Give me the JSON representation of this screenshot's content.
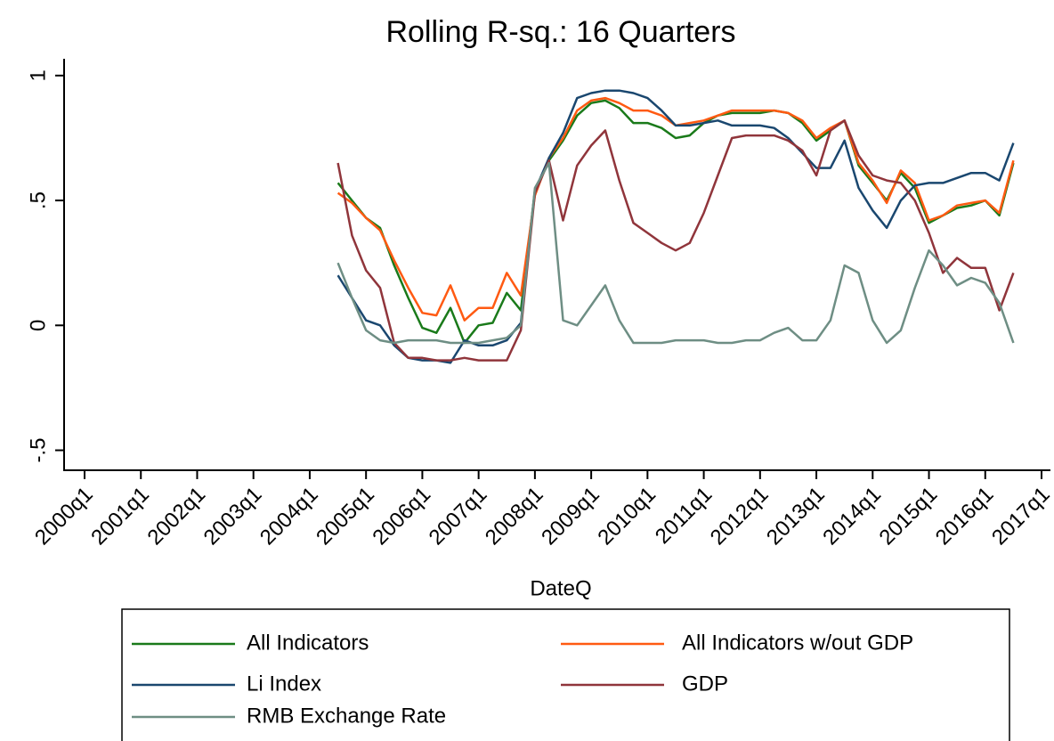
{
  "chart_data": {
    "type": "line",
    "title": "Rolling R-sq.: 16 Quarters",
    "x_label": "DateQ",
    "categories": [
      "2000q1",
      null,
      null,
      null,
      "2001q1",
      null,
      null,
      null,
      "2002q1",
      null,
      null,
      null,
      "2003q1",
      null,
      null,
      null,
      "2004q1",
      null,
      null,
      null,
      "2005q1",
      null,
      null,
      null,
      "2006q1",
      null,
      null,
      null,
      "2007q1",
      null,
      null,
      null,
      "2008q1",
      null,
      null,
      null,
      "2009q1",
      null,
      null,
      null,
      "2010q1",
      null,
      null,
      null,
      "2011q1",
      null,
      null,
      null,
      "2012q1",
      null,
      null,
      null,
      "2013q1",
      null,
      null,
      null,
      "2014q1",
      null,
      null,
      null,
      "2015q1",
      null,
      null,
      null,
      "2016q1",
      null,
      null,
      null,
      "2017q1"
    ],
    "ylim": [
      -0.58,
      1.06
    ],
    "yticks": [
      {
        "value": -0.5,
        "label": "-.5"
      },
      0,
      {
        "value": 0.5,
        "label": ".5"
      },
      1
    ],
    "grid": false,
    "legend": "bottom",
    "series": [
      {
        "name": "All Indicators",
        "color": "#1a7a1a",
        "values": [
          null,
          null,
          null,
          null,
          null,
          null,
          null,
          null,
          null,
          null,
          null,
          null,
          null,
          null,
          null,
          null,
          null,
          null,
          0.57,
          0.5,
          0.43,
          0.39,
          0.24,
          0.11,
          -0.01,
          -0.03,
          0.07,
          -0.07,
          0.0,
          0.01,
          0.13,
          0.06,
          0.54,
          0.66,
          0.74,
          0.84,
          0.89,
          0.9,
          0.87,
          0.81,
          0.81,
          0.79,
          0.75,
          0.76,
          0.81,
          0.84,
          0.85,
          0.85,
          0.85,
          0.86,
          0.85,
          0.81,
          0.74,
          0.78,
          0.82,
          0.64,
          0.57,
          0.5,
          0.61,
          0.55,
          0.41,
          0.44,
          0.47,
          0.48,
          0.5,
          0.44,
          0.65,
          null,
          null
        ]
      },
      {
        "name": "All Indicators w/out GDP",
        "color": "#ff5a12",
        "values": [
          null,
          null,
          null,
          null,
          null,
          null,
          null,
          null,
          null,
          null,
          null,
          null,
          null,
          null,
          null,
          null,
          null,
          null,
          0.53,
          0.49,
          0.43,
          0.38,
          0.26,
          0.15,
          0.05,
          0.04,
          0.16,
          0.02,
          0.07,
          0.07,
          0.21,
          0.12,
          0.52,
          0.67,
          0.75,
          0.86,
          0.9,
          0.91,
          0.89,
          0.86,
          0.86,
          0.84,
          0.8,
          0.81,
          0.82,
          0.84,
          0.86,
          0.86,
          0.86,
          0.86,
          0.85,
          0.82,
          0.75,
          0.79,
          0.82,
          0.65,
          0.58,
          0.49,
          0.62,
          0.57,
          0.42,
          0.44,
          0.48,
          0.49,
          0.5,
          0.45,
          0.66,
          null,
          null
        ]
      },
      {
        "name": "Li Index",
        "color": "#1a476f",
        "values": [
          null,
          null,
          null,
          null,
          null,
          null,
          null,
          null,
          null,
          null,
          null,
          null,
          null,
          null,
          null,
          null,
          null,
          null,
          0.2,
          0.11,
          0.02,
          0.0,
          -0.08,
          -0.13,
          -0.14,
          -0.14,
          -0.15,
          -0.06,
          -0.08,
          -0.08,
          -0.06,
          0.01,
          0.54,
          0.67,
          0.77,
          0.91,
          0.93,
          0.94,
          0.94,
          0.93,
          0.91,
          0.86,
          0.8,
          0.8,
          0.81,
          0.82,
          0.8,
          0.8,
          0.8,
          0.79,
          0.75,
          0.69,
          0.63,
          0.63,
          0.74,
          0.55,
          0.46,
          0.39,
          0.5,
          0.56,
          0.57,
          0.57,
          0.59,
          0.61,
          0.61,
          0.58,
          0.73,
          null,
          null
        ]
      },
      {
        "name": "GDP",
        "color": "#90353b",
        "values": [
          null,
          null,
          null,
          null,
          null,
          null,
          null,
          null,
          null,
          null,
          null,
          null,
          null,
          null,
          null,
          null,
          null,
          null,
          0.65,
          0.36,
          0.22,
          0.15,
          -0.07,
          -0.13,
          -0.13,
          -0.14,
          -0.14,
          -0.13,
          -0.14,
          -0.14,
          -0.14,
          -0.02,
          0.53,
          0.66,
          0.42,
          0.64,
          0.72,
          0.78,
          0.58,
          0.41,
          0.37,
          0.33,
          0.3,
          0.33,
          0.45,
          0.6,
          0.75,
          0.76,
          0.76,
          0.76,
          0.74,
          0.7,
          0.6,
          0.78,
          0.82,
          0.68,
          0.6,
          0.58,
          0.57,
          0.5,
          0.37,
          0.21,
          0.27,
          0.23,
          0.23,
          0.06,
          0.21,
          null,
          null
        ]
      },
      {
        "name": "RMB Exchange Rate",
        "color": "#6e8e84",
        "values": [
          null,
          null,
          null,
          null,
          null,
          null,
          null,
          null,
          null,
          null,
          null,
          null,
          null,
          null,
          null,
          null,
          null,
          null,
          0.25,
          0.11,
          -0.02,
          -0.06,
          -0.07,
          -0.06,
          -0.06,
          -0.06,
          -0.07,
          -0.07,
          -0.07,
          -0.06,
          -0.05,
          0.0,
          0.55,
          0.65,
          0.02,
          0.0,
          0.08,
          0.16,
          0.02,
          -0.07,
          -0.07,
          -0.07,
          -0.06,
          -0.06,
          -0.06,
          -0.07,
          -0.07,
          -0.06,
          -0.06,
          -0.03,
          -0.01,
          -0.06,
          -0.06,
          0.02,
          0.24,
          0.21,
          0.02,
          -0.07,
          -0.02,
          0.15,
          0.3,
          0.24,
          0.16,
          0.19,
          0.17,
          0.09,
          -0.07,
          null,
          null
        ]
      }
    ]
  }
}
